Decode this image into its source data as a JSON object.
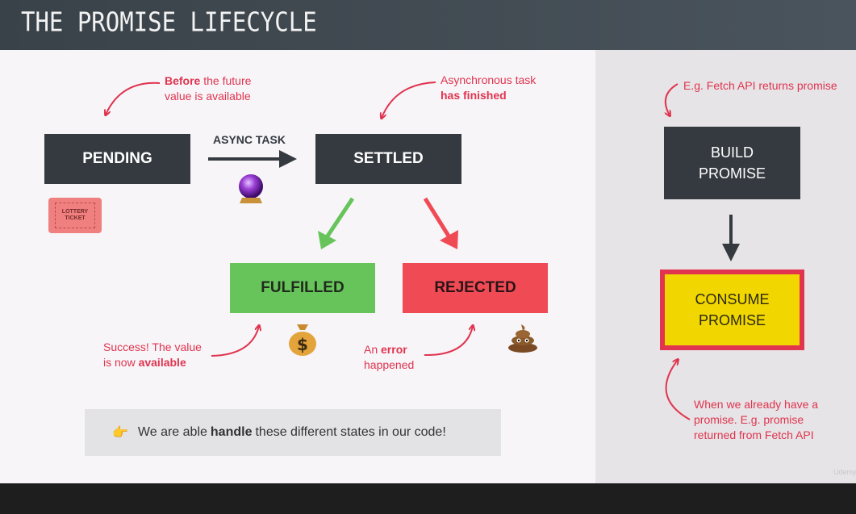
{
  "header": {
    "title": "THE PROMISE LIFECYCLE"
  },
  "diagram": {
    "states": {
      "pending": "PENDING",
      "settled": "SETTLED",
      "fulfilled": "FULFILLED",
      "rejected": "REJECTED"
    },
    "async_label": "ASYNC TASK",
    "notes": {
      "before": {
        "bold": "Before",
        "rest": " the future",
        "line2": "value is available"
      },
      "async_finished": {
        "line1": "Asynchronous task",
        "bold": "has finished"
      },
      "success": {
        "line1": "Success! The value",
        "pre": "is now ",
        "bold": "available"
      },
      "error": {
        "pre": "An ",
        "bold": "error",
        "line2": "happened"
      }
    },
    "ticket": {
      "line1": "LOTTERY",
      "line2": "TICKET"
    },
    "callout": {
      "pre": "We are able ",
      "bold": "handle",
      "post": " these different states in our code!"
    }
  },
  "side": {
    "note_top": "E.g. Fetch API returns promise",
    "build": {
      "line1": "BUILD",
      "line2": "PROMISE"
    },
    "consume": {
      "line1": "CONSUME",
      "line2": "PROMISE"
    },
    "note_bottom": {
      "line1": "When we already have a",
      "line2": "promise. E.g. promise",
      "line3": "returned from Fetch API"
    }
  },
  "watermark": "Udemy",
  "colors": {
    "dark_box": "#343a40",
    "fulfilled": "#66c45a",
    "rejected": "#f04a55",
    "consume_fill": "#f2d600",
    "consume_border": "#e0344f",
    "note_red": "#e0344f"
  },
  "icons": [
    "crystal-ball-icon",
    "lottery-ticket-icon",
    "money-bag-icon",
    "poop-icon",
    "pointing-hand-icon"
  ]
}
